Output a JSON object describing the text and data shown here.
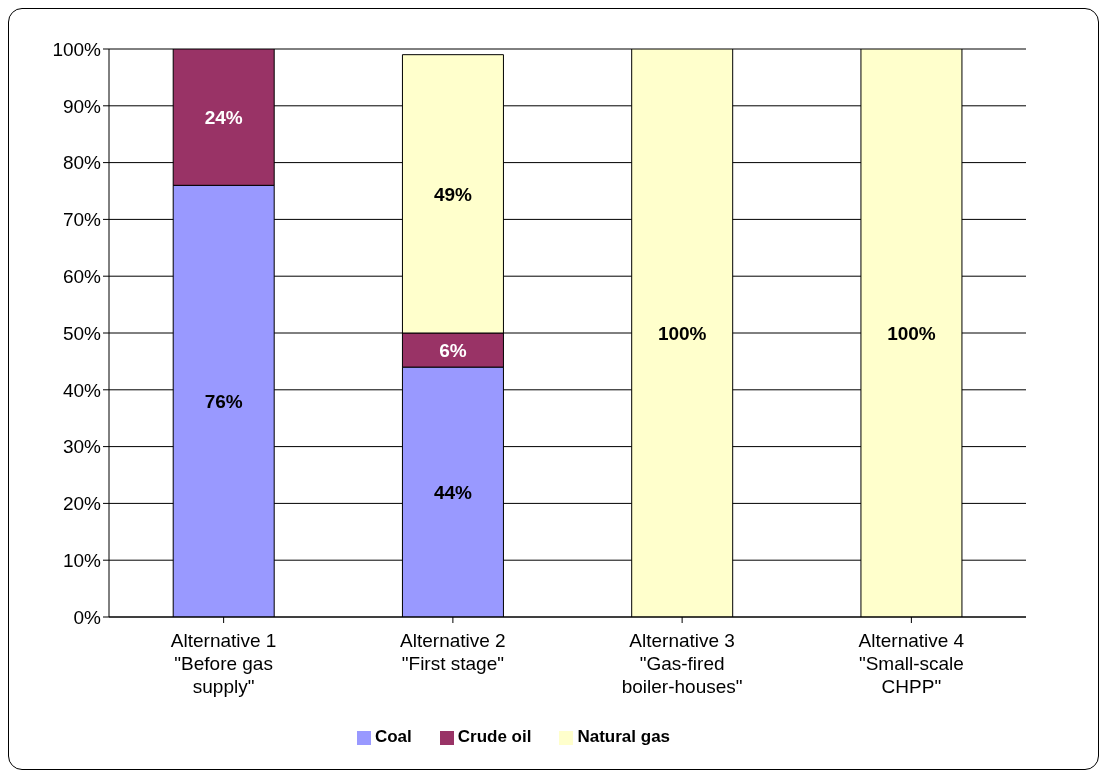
{
  "chart_data": {
    "type": "bar",
    "stacked": true,
    "categories": [
      "Alternative 1\n\"Before gas\nsupply\"",
      "Alternative 2\n\"First stage\"",
      "Alternative 3\n\"Gas-fired\nboiler-houses\"",
      "Alternative 4\n\"Small-scale\nCHPP\""
    ],
    "series": [
      {
        "name": "Coal",
        "color": "#9999ff",
        "values": [
          76,
          44,
          null,
          null
        ],
        "value_labels": [
          "76%",
          "44%",
          null,
          null
        ]
      },
      {
        "name": "Crude oil",
        "color": "#993366",
        "values": [
          24,
          6,
          null,
          null
        ],
        "value_labels": [
          "24%",
          "6%",
          null,
          null
        ]
      },
      {
        "name": "Natural gas",
        "color": "#ffffcc",
        "values": [
          null,
          49,
          100,
          100
        ],
        "value_labels": [
          null,
          "49%",
          "100%",
          "100%"
        ]
      }
    ],
    "ylim": [
      0,
      100
    ],
    "yticks": [
      {
        "value": 0,
        "label": "0%"
      },
      {
        "value": 10,
        "label": "10%"
      },
      {
        "value": 20,
        "label": "20%"
      },
      {
        "value": 30,
        "label": "30%"
      },
      {
        "value": 40,
        "label": "40%"
      },
      {
        "value": 50,
        "label": "50%"
      },
      {
        "value": 60,
        "label": "60%"
      },
      {
        "value": 70,
        "label": "70%"
      },
      {
        "value": 80,
        "label": "80%"
      },
      {
        "value": 90,
        "label": "90%"
      },
      {
        "value": 100,
        "label": "100%"
      }
    ],
    "grid": "y",
    "legend": "bottom"
  }
}
